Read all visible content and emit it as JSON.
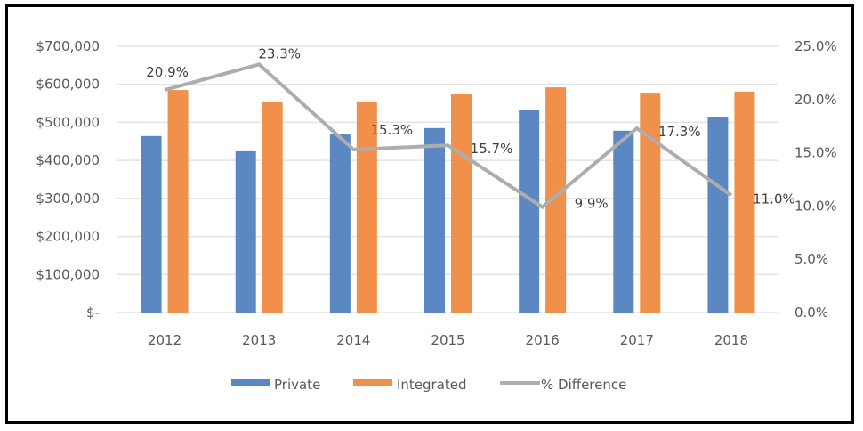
{
  "chart_data": {
    "type": "bar",
    "title": "",
    "xlabel": "",
    "ylabel": "",
    "categories": [
      "2012",
      "2013",
      "2014",
      "2015",
      "2016",
      "2017",
      "2018"
    ],
    "series": [
      {
        "name": "Private",
        "type": "bar",
        "axis": "left",
        "color": "#5B87C3",
        "values": [
          464000,
          424000,
          468000,
          485000,
          532000,
          478000,
          515000
        ]
      },
      {
        "name": "Integrated",
        "type": "bar",
        "axis": "left",
        "color": "#F0904A",
        "values": [
          585000,
          555000,
          555000,
          576000,
          592000,
          578000,
          581000
        ]
      },
      {
        "name": "% Difference",
        "type": "line",
        "axis": "right",
        "color": "#ADADAD",
        "values": [
          20.9,
          23.3,
          15.3,
          15.7,
          9.9,
          17.3,
          11.0
        ],
        "labels": [
          "20.9%",
          "23.3%",
          "15.3%",
          "15.7%",
          "9.9%",
          "17.3%",
          "11.0%"
        ]
      }
    ],
    "ylim": [
      0,
      700000
    ],
    "y2lim": [
      0,
      25
    ],
    "yticks": [
      "$-",
      "$100,000",
      "$200,000",
      "$300,000",
      "$400,000",
      "$500,000",
      "$600,000",
      "$700,000"
    ],
    "y2ticks": [
      "0.0%",
      "5.0%",
      "10.0%",
      "15.0%",
      "20.0%",
      "25.0%"
    ],
    "grid": true,
    "legend": "bottom",
    "legend_entries": [
      "Private",
      "Integrated",
      "% Difference"
    ],
    "gridColor": "#E3E3E3"
  }
}
